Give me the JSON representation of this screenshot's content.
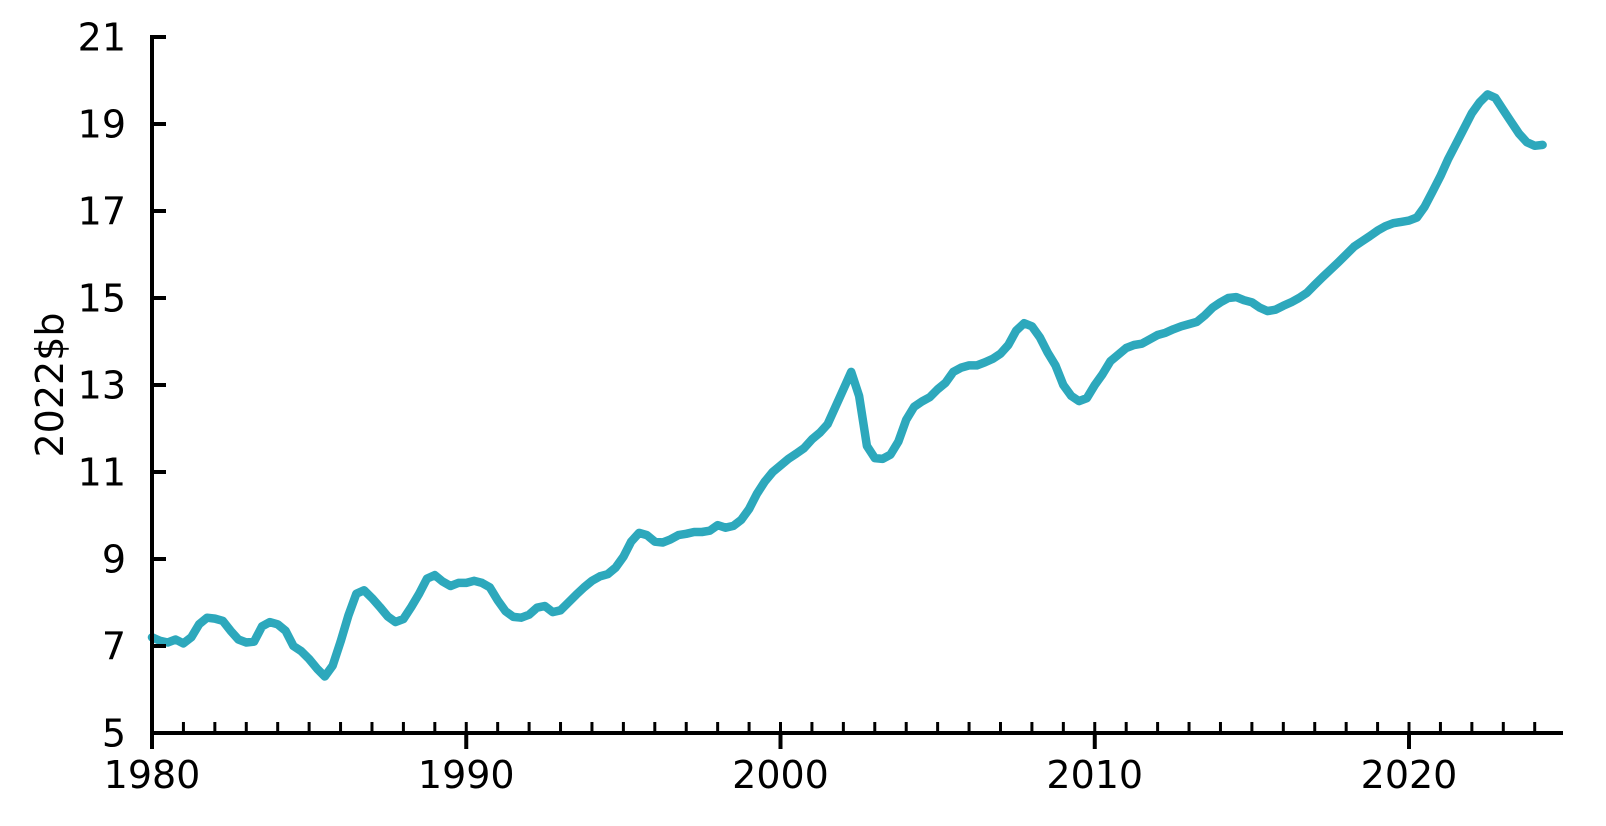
{
  "chart_data": {
    "type": "line",
    "title": "",
    "xlabel": "",
    "ylabel": "2022$b",
    "xlim": [
      1980,
      2024.9
    ],
    "ylim": [
      5,
      21
    ],
    "y_ticks": [
      5,
      7,
      9,
      11,
      13,
      15,
      17,
      19,
      21
    ],
    "x_major_ticks": [
      1980,
      1990,
      2000,
      2010,
      2020
    ],
    "x_minor_tick_step": 1,
    "grid": false,
    "legend_position": "none",
    "line_color": "#2DA8BC",
    "axis_color": "#000000",
    "series": [
      {
        "x": [
          1980,
          1980.25,
          1980.5,
          1980.75,
          1981,
          1981.25,
          1981.5,
          1981.75,
          1982,
          1982.25,
          1982.5,
          1982.75,
          1983,
          1983.25,
          1983.5,
          1983.75,
          1984,
          1984.25,
          1984.5,
          1984.75,
          1985,
          1985.25,
          1985.5,
          1985.75,
          1986,
          1986.25,
          1986.5,
          1986.75,
          1987,
          1987.25,
          1987.5,
          1987.75,
          1988,
          1988.25,
          1988.5,
          1988.75,
          1989,
          1989.25,
          1989.5,
          1989.75,
          1990,
          1990.25,
          1990.5,
          1990.75,
          1991,
          1991.25,
          1991.5,
          1991.75,
          1992,
          1992.25,
          1992.5,
          1992.75,
          1993,
          1993.25,
          1993.5,
          1993.75,
          1994,
          1994.25,
          1994.5,
          1994.75,
          1995,
          1995.25,
          1995.5,
          1995.75,
          1996,
          1996.25,
          1996.5,
          1996.75,
          1997,
          1997.25,
          1997.5,
          1997.75,
          1998,
          1998.25,
          1998.5,
          1998.75,
          1999,
          1999.25,
          1999.5,
          1999.75,
          2000,
          2000.25,
          2000.5,
          2000.75,
          2001,
          2001.25,
          2001.5,
          2001.75,
          2002,
          2002.25,
          2002.5,
          2002.75,
          2003,
          2003.25,
          2003.5,
          2003.75,
          2004,
          2004.25,
          2004.5,
          2004.75,
          2005,
          2005.25,
          2005.5,
          2005.75,
          2006,
          2006.25,
          2006.5,
          2006.75,
          2007,
          2007.25,
          2007.5,
          2007.75,
          2008,
          2008.25,
          2008.5,
          2008.75,
          2009,
          2009.25,
          2009.5,
          2009.75,
          2010,
          2010.25,
          2010.5,
          2010.75,
          2011,
          2011.25,
          2011.5,
          2011.75,
          2012,
          2012.25,
          2012.5,
          2012.75,
          2013,
          2013.25,
          2013.5,
          2013.75,
          2014,
          2014.25,
          2014.5,
          2014.75,
          2015,
          2015.25,
          2015.5,
          2015.75,
          2016,
          2016.25,
          2016.5,
          2016.75,
          2017,
          2017.25,
          2017.5,
          2017.75,
          2018,
          2018.25,
          2018.5,
          2018.75,
          2019,
          2019.25,
          2019.5,
          2019.75,
          2020,
          2020.25,
          2020.5,
          2020.75,
          2021,
          2021.25,
          2021.5,
          2021.75,
          2022,
          2022.25,
          2022.5,
          2022.75,
          2023,
          2023.25,
          2023.5,
          2023.75,
          2024,
          2024.25
        ],
        "values": [
          7.2,
          7.12,
          7.08,
          7.15,
          7.06,
          7.2,
          7.5,
          7.65,
          7.63,
          7.58,
          7.35,
          7.15,
          7.08,
          7.1,
          7.45,
          7.55,
          7.5,
          7.35,
          7.0,
          6.88,
          6.7,
          6.48,
          6.3,
          6.55,
          7.1,
          7.7,
          8.2,
          8.28,
          8.1,
          7.9,
          7.68,
          7.55,
          7.62,
          7.9,
          8.2,
          8.55,
          8.63,
          8.48,
          8.38,
          8.45,
          8.45,
          8.5,
          8.45,
          8.35,
          8.05,
          7.8,
          7.67,
          7.65,
          7.72,
          7.88,
          7.92,
          7.78,
          7.82,
          8.0,
          8.18,
          8.35,
          8.5,
          8.6,
          8.65,
          8.8,
          9.05,
          9.4,
          9.6,
          9.55,
          9.4,
          9.38,
          9.45,
          9.55,
          9.58,
          9.62,
          9.62,
          9.65,
          9.78,
          9.72,
          9.76,
          9.9,
          10.15,
          10.5,
          10.78,
          11.0,
          11.15,
          11.3,
          11.42,
          11.55,
          11.75,
          11.9,
          12.1,
          12.5,
          12.9,
          13.3,
          12.75,
          11.6,
          11.32,
          11.3,
          11.4,
          11.7,
          12.2,
          12.5,
          12.62,
          12.72,
          12.9,
          13.05,
          13.3,
          13.4,
          13.45,
          13.45,
          13.52,
          13.6,
          13.72,
          13.92,
          14.25,
          14.42,
          14.35,
          14.1,
          13.75,
          13.45,
          13.0,
          12.75,
          12.63,
          12.7,
          13.0,
          13.25,
          13.55,
          13.7,
          13.85,
          13.92,
          13.95,
          14.05,
          14.15,
          14.2,
          14.28,
          14.35,
          14.4,
          14.45,
          14.6,
          14.78,
          14.9,
          15.0,
          15.02,
          14.95,
          14.9,
          14.78,
          14.7,
          14.73,
          14.82,
          14.9,
          15.0,
          15.12,
          15.3,
          15.48,
          15.65,
          15.82,
          16.0,
          16.18,
          16.3,
          16.42,
          16.55,
          16.65,
          16.72,
          16.75,
          16.78,
          16.85,
          17.1,
          17.45,
          17.8,
          18.2,
          18.55,
          18.9,
          19.25,
          19.5,
          19.68,
          19.6,
          19.32,
          19.05,
          18.78,
          18.58,
          18.5,
          18.52
        ]
      }
    ]
  }
}
